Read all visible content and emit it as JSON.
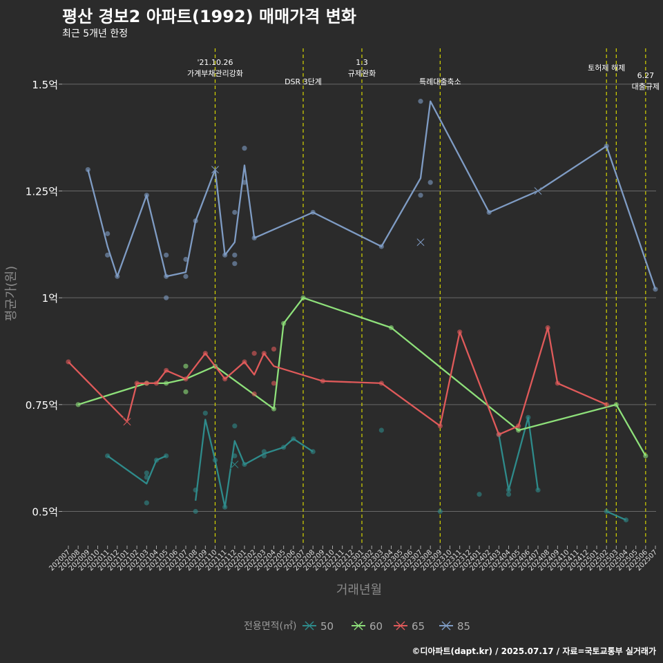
{
  "title": "평산 경보2 아파트(1992) 매매가격 변화",
  "subtitle": "최근 5개년 한정",
  "caption": "©디아파트(dapt.kr) / 2025.07.17 / 자료=국토교통부 실거래가",
  "chart_data": {
    "type": "line",
    "title": "평산 경보2 아파트(1992) 매매가격 변화",
    "subtitle": "최근 5개년 한정",
    "xlabel": "거래년월",
    "ylabel": "평균가(원)",
    "x": [
      "202007",
      "202008",
      "202009",
      "202010",
      "202011",
      "202012",
      "202101",
      "202102",
      "202103",
      "202104",
      "202105",
      "202106",
      "202107",
      "202108",
      "202109",
      "202110",
      "202111",
      "202112",
      "202201",
      "202202",
      "202203",
      "202204",
      "202205",
      "202206",
      "202207",
      "202208",
      "202209",
      "202210",
      "202211",
      "202212",
      "202301",
      "202302",
      "202303",
      "202304",
      "202305",
      "202306",
      "202307",
      "202308",
      "202309",
      "202310",
      "202311",
      "202312",
      "202401",
      "202402",
      "202403",
      "202404",
      "202405",
      "202406",
      "202407",
      "202408",
      "202409",
      "202410",
      "202411",
      "202412",
      "202501",
      "202502",
      "202503",
      "202504",
      "202505",
      "202506",
      "202507"
    ],
    "y_ticks": [
      0.5,
      0.75,
      1.0,
      1.25,
      1.5
    ],
    "y_tick_labels": [
      "0.5억",
      "0.75억",
      "1억",
      "1.25억",
      "1.5억"
    ],
    "ylim": [
      0.42,
      1.6
    ],
    "grid": true,
    "legend": {
      "title": "전용면적(㎡)",
      "position": "bottom"
    },
    "annotations": [
      {
        "x": 15,
        "label": "'21.10.26\n가계부채관리강화",
        "row": 0
      },
      {
        "x": 24,
        "label": "DSR 3단계",
        "row": 1
      },
      {
        "x": 30,
        "label": "1.3\n규제완화",
        "row": 0
      },
      {
        "x": 38,
        "label": "특례대출축소",
        "row": 1
      },
      {
        "x": 55,
        "label": "토허제 해제",
        "row": 0
      },
      {
        "x": 56,
        "label": "",
        "row": 0
      },
      {
        "x": 59,
        "label": "6.27\n대출규제",
        "row": 2
      }
    ],
    "series": [
      {
        "name": "50",
        "color": "#2e8b8b",
        "line": [
          [
            4,
            0.63
          ],
          [
            8,
            0.565
          ],
          [
            9,
            0.62
          ],
          [
            10,
            0.63
          ]
        ],
        "line2": [
          [
            13,
            0.525
          ],
          [
            14,
            0.715
          ],
          [
            15,
            0.62
          ],
          [
            16,
            0.51
          ],
          [
            17,
            0.665
          ],
          [
            18,
            0.61
          ],
          [
            20,
            0.635
          ],
          [
            22,
            0.65
          ],
          [
            23,
            0.67
          ],
          [
            25,
            0.64
          ]
        ],
        "line3": [
          [
            44,
            0.68
          ],
          [
            45,
            0.55
          ],
          [
            47,
            0.72
          ],
          [
            48,
            0.55
          ]
        ],
        "line4": [
          [
            55,
            0.5
          ],
          [
            57,
            0.48
          ]
        ],
        "points": [
          [
            4,
            0.63
          ],
          [
            8,
            0.59
          ],
          [
            8,
            0.58
          ],
          [
            8,
            0.52
          ],
          [
            9,
            0.62
          ],
          [
            10,
            0.63
          ],
          [
            13,
            0.55
          ],
          [
            13,
            0.5
          ],
          [
            14,
            0.73
          ],
          [
            15,
            0.62
          ],
          [
            16,
            0.51
          ],
          [
            17,
            0.7
          ],
          [
            17,
            0.63
          ],
          [
            18,
            0.61
          ],
          [
            20,
            0.64
          ],
          [
            20,
            0.63
          ],
          [
            22,
            0.65
          ],
          [
            23,
            0.67
          ],
          [
            25,
            0.64
          ],
          [
            32,
            0.69
          ],
          [
            38,
            0.5
          ],
          [
            42,
            0.54
          ],
          [
            44,
            0.68
          ],
          [
            45,
            0.55
          ],
          [
            45,
            0.54
          ],
          [
            47,
            0.72
          ],
          [
            48,
            0.55
          ],
          [
            55,
            0.5
          ],
          [
            57,
            0.48
          ]
        ],
        "cross": [
          [
            17,
            0.61
          ]
        ]
      },
      {
        "name": "60",
        "color": "#8ee07a",
        "line": [
          [
            1,
            0.75
          ],
          [
            8,
            0.8
          ],
          [
            10,
            0.8
          ],
          [
            12,
            0.81
          ],
          [
            15,
            0.84
          ],
          [
            21,
            0.74
          ],
          [
            22,
            0.94
          ],
          [
            24,
            1.0
          ],
          [
            33,
            0.93
          ],
          [
            46,
            0.69
          ],
          [
            56,
            0.75
          ],
          [
            59,
            0.63
          ]
        ],
        "points": [
          [
            1,
            0.75
          ],
          [
            8,
            0.8
          ],
          [
            10,
            0.8
          ],
          [
            12,
            0.84
          ],
          [
            12,
            0.78
          ],
          [
            15,
            0.84
          ],
          [
            21,
            0.74
          ],
          [
            22,
            0.94
          ],
          [
            24,
            1.0
          ],
          [
            33,
            0.93
          ],
          [
            46,
            0.69
          ],
          [
            56,
            0.75
          ],
          [
            59,
            0.63
          ]
        ],
        "cross": []
      },
      {
        "name": "65",
        "color": "#e05a5a",
        "line": [
          [
            0,
            0.85
          ],
          [
            6,
            0.71
          ],
          [
            7,
            0.8
          ],
          [
            8,
            0.8
          ],
          [
            9,
            0.8
          ],
          [
            10,
            0.83
          ],
          [
            12,
            0.81
          ],
          [
            14,
            0.87
          ],
          [
            16,
            0.81
          ],
          [
            18,
            0.85
          ],
          [
            19,
            0.82
          ],
          [
            20,
            0.87
          ],
          [
            21,
            0.84
          ],
          [
            26,
            0.805
          ],
          [
            32,
            0.8
          ],
          [
            38,
            0.7
          ],
          [
            40,
            0.92
          ],
          [
            44,
            0.68
          ],
          [
            46,
            0.7
          ],
          [
            49,
            0.93
          ],
          [
            50,
            0.8
          ],
          [
            55,
            0.75
          ]
        ],
        "points": [
          [
            0,
            0.85
          ],
          [
            7,
            0.8
          ],
          [
            8,
            0.8
          ],
          [
            9,
            0.8
          ],
          [
            10,
            0.83
          ],
          [
            12,
            0.81
          ],
          [
            14,
            0.87
          ],
          [
            16,
            0.81
          ],
          [
            18,
            0.85
          ],
          [
            19,
            0.87
          ],
          [
            19,
            0.775
          ],
          [
            20,
            0.87
          ],
          [
            21,
            0.88
          ],
          [
            21,
            0.8
          ],
          [
            26,
            0.805
          ],
          [
            32,
            0.8
          ],
          [
            38,
            0.7
          ],
          [
            40,
            0.92
          ],
          [
            44,
            0.68
          ],
          [
            46,
            0.7
          ],
          [
            49,
            0.93
          ],
          [
            50,
            0.8
          ],
          [
            55,
            0.75
          ]
        ],
        "cross": [
          [
            6,
            0.71
          ]
        ]
      },
      {
        "name": "85",
        "color": "#7f9cc4",
        "line": [
          [
            2,
            1.3
          ],
          [
            4,
            1.12
          ],
          [
            5,
            1.05
          ],
          [
            8,
            1.24
          ],
          [
            10,
            1.05
          ],
          [
            12,
            1.06
          ],
          [
            13,
            1.18
          ],
          [
            15,
            1.3
          ],
          [
            16,
            1.1
          ],
          [
            17,
            1.13
          ],
          [
            18,
            1.31
          ],
          [
            19,
            1.14
          ],
          [
            25,
            1.2
          ],
          [
            32,
            1.12
          ],
          [
            36,
            1.28
          ],
          [
            37,
            1.46
          ],
          [
            43,
            1.2
          ],
          [
            48,
            1.25
          ],
          [
            55,
            1.355
          ],
          [
            60,
            1.02
          ]
        ],
        "points": [
          [
            2,
            1.3
          ],
          [
            4,
            1.15
          ],
          [
            4,
            1.1
          ],
          [
            5,
            1.05
          ],
          [
            8,
            1.24
          ],
          [
            10,
            1.1
          ],
          [
            10,
            1.05
          ],
          [
            10,
            1.0
          ],
          [
            12,
            1.09
          ],
          [
            12,
            1.05
          ],
          [
            13,
            1.18
          ],
          [
            16,
            1.1
          ],
          [
            17,
            1.2
          ],
          [
            17,
            1.1
          ],
          [
            17,
            1.08
          ],
          [
            18,
            1.35
          ],
          [
            18,
            1.27
          ],
          [
            19,
            1.14
          ],
          [
            25,
            1.2
          ],
          [
            32,
            1.12
          ],
          [
            36,
            1.46
          ],
          [
            36,
            1.24
          ],
          [
            37,
            1.27
          ],
          [
            43,
            1.2
          ],
          [
            55,
            1.355
          ],
          [
            60,
            1.02
          ]
        ],
        "cross": [
          [
            15,
            1.3
          ],
          [
            36,
            1.13
          ],
          [
            48,
            1.25
          ]
        ]
      }
    ]
  }
}
